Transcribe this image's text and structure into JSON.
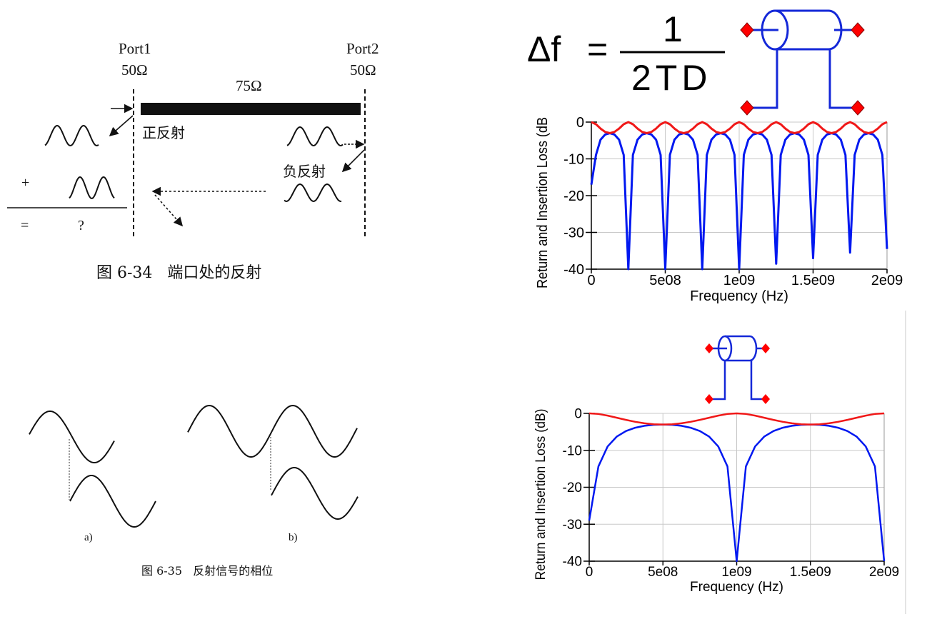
{
  "figure_634": {
    "port1_label": "Port1",
    "port1_impedance": "50Ω",
    "port2_label": "Port2",
    "port2_impedance": "50Ω",
    "line_impedance": "75Ω",
    "positive_reflection": "正反射",
    "negative_reflection": "负反射",
    "plus_sign": "+",
    "equals_sign": "=",
    "question_mark": "?",
    "caption": "图 6-34   端口处的反射"
  },
  "figure_635": {
    "label_a": "a)",
    "label_b": "b)",
    "caption": "图 6-35   反射信号的相位"
  },
  "formula": {
    "lhs": "Δf",
    "equals": "=",
    "numerator": "1",
    "denominator": "2TD"
  },
  "colors": {
    "return_loss": "#0018f0",
    "insertion_loss": "#f01818",
    "port_marker": "#ff0000",
    "grid": "#c8c8c8"
  },
  "chart_data": [
    {
      "type": "line",
      "xlabel": "Frequency (Hz)",
      "ylabel": "Return and Insertion Loss (dB",
      "xlim": [
        0,
        2000000000
      ],
      "ylim": [
        -40,
        0
      ],
      "xticks": [
        "0",
        "5e08",
        "1e09",
        "1.5e09",
        "2e09"
      ],
      "xtick_values": [
        0,
        500000000,
        1000000000,
        1500000000,
        2000000000
      ],
      "yticks": [
        "0",
        "-10",
        "-20",
        "-30",
        "-40"
      ],
      "ytick_values": [
        0,
        -10,
        -20,
        -30,
        -40
      ],
      "grid": true,
      "x_start": 0,
      "x_step": 31250000,
      "series": [
        {
          "color": "#0018f0",
          "values": [
            -17,
            -8.94,
            -4.77,
            -3.37,
            -3.01,
            -3.37,
            -4.77,
            -8.94,
            -40,
            -8.94,
            -4.77,
            -3.37,
            -3.01,
            -3.37,
            -4.77,
            -8.94,
            -40,
            -8.94,
            -4.77,
            -3.37,
            -3.01,
            -3.37,
            -4.77,
            -8.94,
            -40,
            -8.94,
            -4.77,
            -3.37,
            -3.01,
            -3.37,
            -4.77,
            -8.94,
            -40,
            -8.94,
            -4.77,
            -3.37,
            -3.01,
            -3.37,
            -4.77,
            -8.94,
            -38.5,
            -8.94,
            -4.77,
            -3.37,
            -3.01,
            -3.37,
            -4.77,
            -8.94,
            -37,
            -8.94,
            -4.77,
            -3.37,
            -3.01,
            -3.37,
            -4.77,
            -8.94,
            -35.5,
            -8.94,
            -4.77,
            -3.37,
            -3.01,
            -3.37,
            -4.77,
            -8.94,
            -34.5
          ]
        },
        {
          "color": "#f01818",
          "values": [
            0,
            -0.59,
            -1.76,
            -2.68,
            -3.01,
            -2.68,
            -1.76,
            -0.59,
            0,
            -0.59,
            -1.76,
            -2.68,
            -3.01,
            -2.68,
            -1.76,
            -0.59,
            0,
            -0.59,
            -1.76,
            -2.68,
            -3.01,
            -2.68,
            -1.76,
            -0.59,
            0,
            -0.59,
            -1.76,
            -2.68,
            -3.01,
            -2.68,
            -1.76,
            -0.59,
            0,
            -0.59,
            -1.76,
            -2.68,
            -3.01,
            -2.68,
            -1.76,
            -0.59,
            0,
            -0.59,
            -1.76,
            -2.68,
            -3.01,
            -2.68,
            -1.76,
            -0.59,
            0,
            -0.59,
            -1.76,
            -2.68,
            -3.01,
            -2.68,
            -1.76,
            -0.59,
            0,
            -0.59,
            -1.76,
            -2.68,
            -3.01,
            -2.68,
            -1.76,
            -0.59,
            0
          ]
        }
      ]
    },
    {
      "type": "line",
      "xlabel": "Frequency (Hz)",
      "ylabel": "Return and Insertion Loss (dB)",
      "xlim": [
        0,
        2000000000
      ],
      "ylim": [
        -40,
        0
      ],
      "xticks": [
        "0",
        "5e08",
        "1e09",
        "1.5e09",
        "2e09"
      ],
      "xtick_values": [
        0,
        500000000,
        1000000000,
        1500000000,
        2000000000
      ],
      "yticks": [
        "0",
        "-10",
        "-20",
        "-30",
        "-40"
      ],
      "ytick_values": [
        0,
        -10,
        -20,
        -30,
        -40
      ],
      "grid": true,
      "x_start": 0,
      "x_step": 62500000,
      "series": [
        {
          "color": "#0018f0",
          "values": [
            -29,
            -14.36,
            -8.94,
            -6.27,
            -4.77,
            -3.88,
            -3.37,
            -3.09,
            -3.01,
            -3.09,
            -3.37,
            -3.88,
            -4.77,
            -6.27,
            -8.94,
            -14.36,
            -40,
            -14.36,
            -8.94,
            -6.27,
            -4.77,
            -3.88,
            -3.37,
            -3.09,
            -3.01,
            -3.09,
            -3.37,
            -3.88,
            -4.77,
            -6.27,
            -8.94,
            -14.36,
            -40
          ]
        },
        {
          "color": "#f01818",
          "values": [
            0,
            -0.16,
            -0.59,
            -1.17,
            -1.76,
            -2.28,
            -2.68,
            -2.93,
            -3.01,
            -2.93,
            -2.68,
            -2.28,
            -1.76,
            -1.17,
            -0.59,
            -0.16,
            0,
            -0.16,
            -0.59,
            -1.17,
            -1.76,
            -2.28,
            -2.68,
            -2.93,
            -3.01,
            -2.93,
            -2.68,
            -2.28,
            -1.76,
            -1.17,
            -0.59,
            -0.16,
            0
          ]
        }
      ]
    }
  ]
}
